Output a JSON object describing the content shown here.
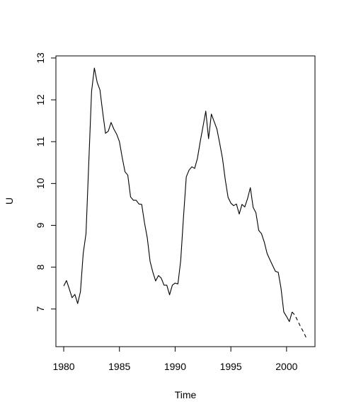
{
  "chart_data": {
    "type": "line",
    "title": "",
    "xlabel": "Time",
    "ylabel": "U",
    "xlim": [
      1979.3,
      2002.55
    ],
    "ylim": [
      6.1,
      13.05
    ],
    "xticks": [
      1980,
      1985,
      1990,
      1995,
      2000
    ],
    "yticks": [
      7,
      8,
      9,
      10,
      11,
      12,
      13
    ],
    "grid": false,
    "legend": "none",
    "series": [
      {
        "style": "solid",
        "x": [
          1980.0,
          1980.25,
          1980.5,
          1980.75,
          1981.0,
          1981.25,
          1981.5,
          1981.75,
          1982.0,
          1982.25,
          1982.5,
          1982.75,
          1983.0,
          1983.25,
          1983.5,
          1983.75,
          1984.0,
          1984.25,
          1984.5,
          1984.75,
          1985.0,
          1985.25,
          1985.5,
          1985.75,
          1986.0,
          1986.25,
          1986.5,
          1986.75,
          1987.0,
          1987.25,
          1987.5,
          1987.75,
          1988.0,
          1988.25,
          1988.5,
          1988.75,
          1989.0,
          1989.25,
          1989.5,
          1989.75,
          1990.0,
          1990.25,
          1990.5,
          1990.75,
          1991.0,
          1991.25,
          1991.5,
          1991.75,
          1992.0,
          1992.25,
          1992.5,
          1992.75,
          1993.0,
          1993.25,
          1993.5,
          1993.75,
          1994.0,
          1994.25,
          1994.5,
          1994.75,
          1995.0,
          1995.25,
          1995.5,
          1995.75,
          1996.0,
          1996.25,
          1996.5,
          1996.75,
          1997.0,
          1997.25,
          1997.5,
          1997.75,
          1998.0,
          1998.25,
          1998.5,
          1998.75,
          1999.0,
          1999.25,
          1999.5,
          1999.75,
          2000.0,
          2000.25,
          2000.5
        ],
        "y": [
          7.55,
          7.68,
          7.48,
          7.27,
          7.35,
          7.13,
          7.41,
          8.33,
          8.8,
          10.5,
          12.2,
          12.76,
          12.42,
          12.24,
          11.7,
          11.2,
          11.25,
          11.46,
          11.3,
          11.18,
          11.0,
          10.62,
          10.28,
          10.2,
          9.68,
          9.6,
          9.6,
          9.51,
          9.5,
          9.06,
          8.7,
          8.14,
          7.88,
          7.67,
          7.8,
          7.74,
          7.57,
          7.57,
          7.34,
          7.57,
          7.62,
          7.6,
          8.16,
          9.2,
          10.16,
          10.32,
          10.4,
          10.36,
          10.6,
          11.0,
          11.36,
          11.73,
          11.07,
          11.66,
          11.48,
          11.3,
          10.96,
          10.6,
          10.09,
          9.67,
          9.53,
          9.47,
          9.51,
          9.27,
          9.5,
          9.44,
          9.64,
          9.9,
          9.43,
          9.3,
          8.88,
          8.8,
          8.6,
          8.33,
          8.18,
          8.04,
          7.9,
          7.88,
          7.5,
          6.93,
          6.82,
          6.7,
          6.93
        ]
      },
      {
        "style": "dashed",
        "x": [
          2000.5,
          2000.75,
          2001.0,
          2001.25,
          2001.5,
          2001.75
        ],
        "y": [
          6.93,
          6.85,
          6.72,
          6.58,
          6.46,
          6.32
        ]
      }
    ]
  }
}
